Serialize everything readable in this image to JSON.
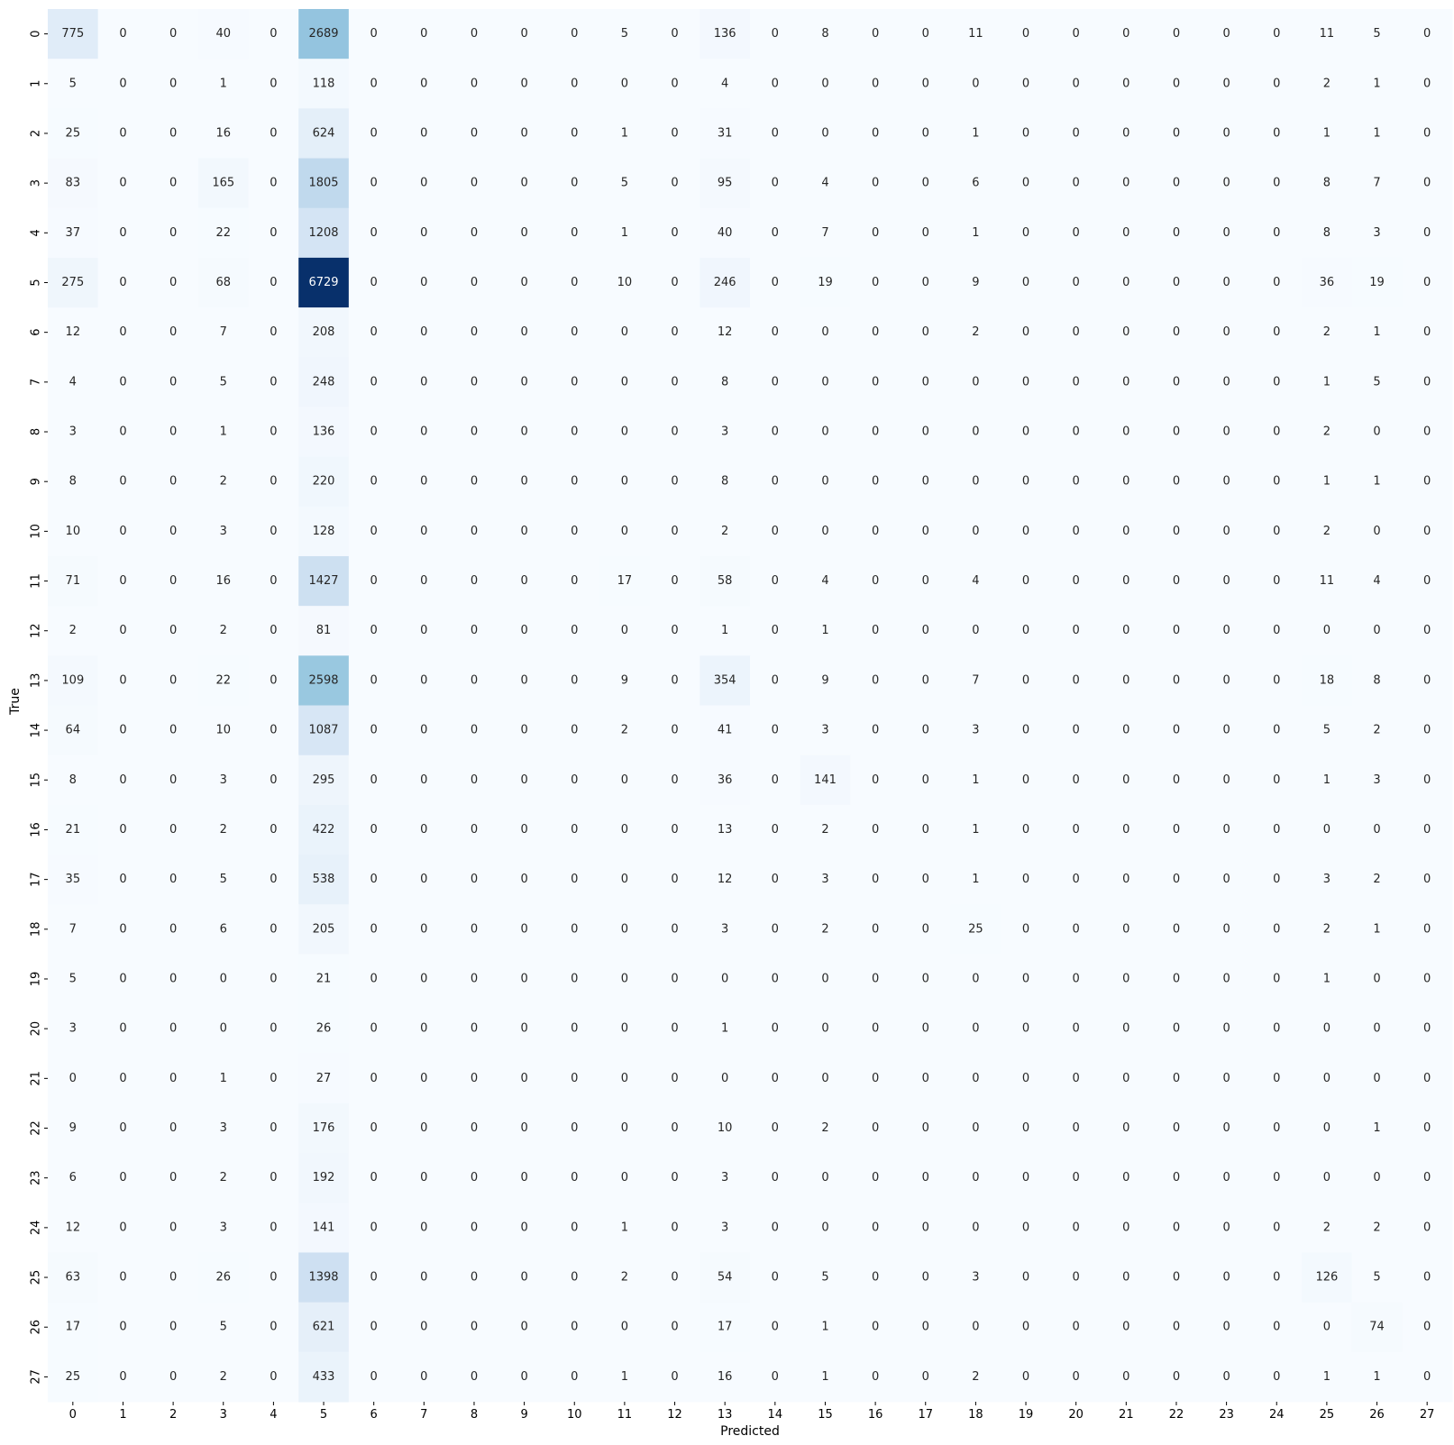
{
  "chart_data": {
    "type": "heatmap",
    "title": "",
    "xlabel": "Predicted",
    "ylabel": "True",
    "colormap": "Blues",
    "colorbar": false,
    "x_ticks": [
      "0",
      "1",
      "2",
      "3",
      "4",
      "5",
      "6",
      "7",
      "8",
      "9",
      "10",
      "11",
      "12",
      "13",
      "14",
      "15",
      "16",
      "17",
      "18",
      "19",
      "20",
      "21",
      "22",
      "23",
      "24",
      "25",
      "26",
      "27"
    ],
    "y_ticks": [
      "0",
      "1",
      "2",
      "3",
      "4",
      "5",
      "6",
      "7",
      "8",
      "9",
      "10",
      "11",
      "12",
      "13",
      "14",
      "15",
      "16",
      "17",
      "18",
      "19",
      "20",
      "21",
      "22",
      "23",
      "24",
      "25",
      "26",
      "27"
    ],
    "value_range": [
      0,
      6729
    ],
    "matrix": [
      [
        775,
        0,
        0,
        40,
        0,
        2689,
        0,
        0,
        0,
        0,
        0,
        5,
        0,
        136,
        0,
        8,
        0,
        0,
        11,
        0,
        0,
        0,
        0,
        0,
        0,
        11,
        5,
        0
      ],
      [
        5,
        0,
        0,
        1,
        0,
        118,
        0,
        0,
        0,
        0,
        0,
        0,
        0,
        4,
        0,
        0,
        0,
        0,
        0,
        0,
        0,
        0,
        0,
        0,
        0,
        2,
        1,
        0
      ],
      [
        25,
        0,
        0,
        16,
        0,
        624,
        0,
        0,
        0,
        0,
        0,
        1,
        0,
        31,
        0,
        0,
        0,
        0,
        1,
        0,
        0,
        0,
        0,
        0,
        0,
        1,
        1,
        0
      ],
      [
        83,
        0,
        0,
        165,
        0,
        1805,
        0,
        0,
        0,
        0,
        0,
        5,
        0,
        95,
        0,
        4,
        0,
        0,
        6,
        0,
        0,
        0,
        0,
        0,
        0,
        8,
        7,
        0
      ],
      [
        37,
        0,
        0,
        22,
        0,
        1208,
        0,
        0,
        0,
        0,
        0,
        1,
        0,
        40,
        0,
        7,
        0,
        0,
        1,
        0,
        0,
        0,
        0,
        0,
        0,
        8,
        3,
        0
      ],
      [
        275,
        0,
        0,
        68,
        0,
        6729,
        0,
        0,
        0,
        0,
        0,
        10,
        0,
        246,
        0,
        19,
        0,
        0,
        9,
        0,
        0,
        0,
        0,
        0,
        0,
        36,
        19,
        0
      ],
      [
        12,
        0,
        0,
        7,
        0,
        208,
        0,
        0,
        0,
        0,
        0,
        0,
        0,
        12,
        0,
        0,
        0,
        0,
        2,
        0,
        0,
        0,
        0,
        0,
        0,
        2,
        1,
        0
      ],
      [
        4,
        0,
        0,
        5,
        0,
        248,
        0,
        0,
        0,
        0,
        0,
        0,
        0,
        8,
        0,
        0,
        0,
        0,
        0,
        0,
        0,
        0,
        0,
        0,
        0,
        1,
        5,
        0
      ],
      [
        3,
        0,
        0,
        1,
        0,
        136,
        0,
        0,
        0,
        0,
        0,
        0,
        0,
        3,
        0,
        0,
        0,
        0,
        0,
        0,
        0,
        0,
        0,
        0,
        0,
        2,
        0,
        0
      ],
      [
        8,
        0,
        0,
        2,
        0,
        220,
        0,
        0,
        0,
        0,
        0,
        0,
        0,
        8,
        0,
        0,
        0,
        0,
        0,
        0,
        0,
        0,
        0,
        0,
        0,
        1,
        1,
        0
      ],
      [
        10,
        0,
        0,
        3,
        0,
        128,
        0,
        0,
        0,
        0,
        0,
        0,
        0,
        2,
        0,
        0,
        0,
        0,
        0,
        0,
        0,
        0,
        0,
        0,
        0,
        2,
        0,
        0
      ],
      [
        71,
        0,
        0,
        16,
        0,
        1427,
        0,
        0,
        0,
        0,
        0,
        17,
        0,
        58,
        0,
        4,
        0,
        0,
        4,
        0,
        0,
        0,
        0,
        0,
        0,
        11,
        4,
        0
      ],
      [
        2,
        0,
        0,
        2,
        0,
        81,
        0,
        0,
        0,
        0,
        0,
        0,
        0,
        1,
        0,
        1,
        0,
        0,
        0,
        0,
        0,
        0,
        0,
        0,
        0,
        0,
        0,
        0
      ],
      [
        109,
        0,
        0,
        22,
        0,
        2598,
        0,
        0,
        0,
        0,
        0,
        9,
        0,
        354,
        0,
        9,
        0,
        0,
        7,
        0,
        0,
        0,
        0,
        0,
        0,
        18,
        8,
        0
      ],
      [
        64,
        0,
        0,
        10,
        0,
        1087,
        0,
        0,
        0,
        0,
        0,
        2,
        0,
        41,
        0,
        3,
        0,
        0,
        3,
        0,
        0,
        0,
        0,
        0,
        0,
        5,
        2,
        0
      ],
      [
        8,
        0,
        0,
        3,
        0,
        295,
        0,
        0,
        0,
        0,
        0,
        0,
        0,
        36,
        0,
        141,
        0,
        0,
        1,
        0,
        0,
        0,
        0,
        0,
        0,
        1,
        3,
        0
      ],
      [
        21,
        0,
        0,
        2,
        0,
        422,
        0,
        0,
        0,
        0,
        0,
        0,
        0,
        13,
        0,
        2,
        0,
        0,
        1,
        0,
        0,
        0,
        0,
        0,
        0,
        0,
        0,
        0
      ],
      [
        35,
        0,
        0,
        5,
        0,
        538,
        0,
        0,
        0,
        0,
        0,
        0,
        0,
        12,
        0,
        3,
        0,
        0,
        1,
        0,
        0,
        0,
        0,
        0,
        0,
        3,
        2,
        0
      ],
      [
        7,
        0,
        0,
        6,
        0,
        205,
        0,
        0,
        0,
        0,
        0,
        0,
        0,
        3,
        0,
        2,
        0,
        0,
        25,
        0,
        0,
        0,
        0,
        0,
        0,
        2,
        1,
        0
      ],
      [
        5,
        0,
        0,
        0,
        0,
        21,
        0,
        0,
        0,
        0,
        0,
        0,
        0,
        0,
        0,
        0,
        0,
        0,
        0,
        0,
        0,
        0,
        0,
        0,
        0,
        1,
        0,
        0
      ],
      [
        3,
        0,
        0,
        0,
        0,
        26,
        0,
        0,
        0,
        0,
        0,
        0,
        0,
        1,
        0,
        0,
        0,
        0,
        0,
        0,
        0,
        0,
        0,
        0,
        0,
        0,
        0,
        0
      ],
      [
        0,
        0,
        0,
        1,
        0,
        27,
        0,
        0,
        0,
        0,
        0,
        0,
        0,
        0,
        0,
        0,
        0,
        0,
        0,
        0,
        0,
        0,
        0,
        0,
        0,
        0,
        0,
        0
      ],
      [
        9,
        0,
        0,
        3,
        0,
        176,
        0,
        0,
        0,
        0,
        0,
        0,
        0,
        10,
        0,
        2,
        0,
        0,
        0,
        0,
        0,
        0,
        0,
        0,
        0,
        0,
        1,
        0
      ],
      [
        6,
        0,
        0,
        2,
        0,
        192,
        0,
        0,
        0,
        0,
        0,
        0,
        0,
        3,
        0,
        0,
        0,
        0,
        0,
        0,
        0,
        0,
        0,
        0,
        0,
        0,
        0,
        0
      ],
      [
        12,
        0,
        0,
        3,
        0,
        141,
        0,
        0,
        0,
        0,
        0,
        1,
        0,
        3,
        0,
        0,
        0,
        0,
        0,
        0,
        0,
        0,
        0,
        0,
        0,
        2,
        2,
        0
      ],
      [
        63,
        0,
        0,
        26,
        0,
        1398,
        0,
        0,
        0,
        0,
        0,
        2,
        0,
        54,
        0,
        5,
        0,
        0,
        3,
        0,
        0,
        0,
        0,
        0,
        0,
        126,
        5,
        0
      ],
      [
        17,
        0,
        0,
        5,
        0,
        621,
        0,
        0,
        0,
        0,
        0,
        0,
        0,
        17,
        0,
        1,
        0,
        0,
        0,
        0,
        0,
        0,
        0,
        0,
        0,
        0,
        74,
        0
      ],
      [
        25,
        0,
        0,
        2,
        0,
        433,
        0,
        0,
        0,
        0,
        0,
        1,
        0,
        16,
        0,
        1,
        0,
        0,
        2,
        0,
        0,
        0,
        0,
        0,
        0,
        1,
        1,
        0
      ]
    ]
  }
}
